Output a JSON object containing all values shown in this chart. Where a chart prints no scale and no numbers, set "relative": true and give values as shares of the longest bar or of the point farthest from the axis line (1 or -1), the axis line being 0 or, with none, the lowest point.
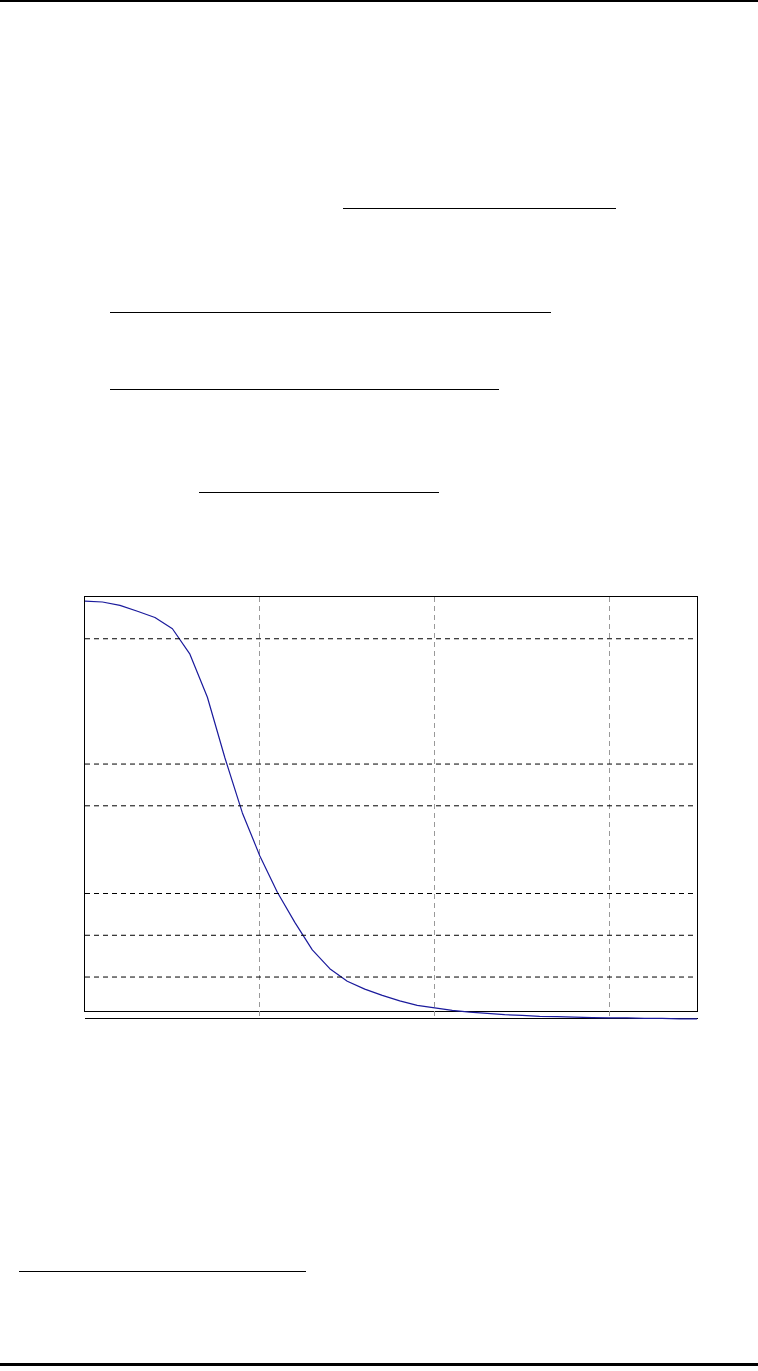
{
  "chart_data": {
    "type": "line",
    "relative": true,
    "categories": [
      null,
      null,
      null,
      null,
      null,
      null,
      null,
      null,
      null,
      null,
      null,
      null,
      null,
      null,
      null,
      null,
      null,
      null,
      null,
      null,
      null,
      null,
      null,
      null,
      null,
      null,
      null,
      null,
      null,
      null,
      null,
      null,
      null,
      null,
      null,
      null
    ],
    "series": [
      {
        "color": "#1a1a9c",
        "values": [
          1,
          0.998,
          0.99,
          0.976,
          0.961,
          0.934,
          0.873,
          0.77,
          0.625,
          0.493,
          0.39,
          0.303,
          0.231,
          0.165,
          0.12,
          0.09,
          0.071,
          0.056,
          0.043,
          0.032,
          0.026,
          0.02,
          0.016,
          0.013,
          0.01,
          0.008,
          0.006,
          0.005,
          0.004,
          0.003,
          0.002,
          0.002,
          0.001,
          0.001,
          0,
          0
        ]
      }
    ],
    "grid": "x",
    "marker": "none",
    "line_style": "solid",
    "ref_lines": [
      {
        "axis": "y",
        "value": 0.91,
        "color": "#000000",
        "line_style": "dashed"
      },
      {
        "axis": "y",
        "value": 0.61,
        "color": "#000000",
        "line_style": "dashed"
      },
      {
        "axis": "y",
        "value": 0.51,
        "color": "#000000",
        "line_style": "dashed"
      },
      {
        "axis": "y",
        "value": 0.3,
        "color": "#000000",
        "line_style": "dashed"
      },
      {
        "axis": "y",
        "value": 0.2,
        "color": "#000000",
        "line_style": "dashed"
      },
      {
        "axis": "y",
        "value": 0.1,
        "color": "#000000",
        "line_style": "dashed"
      }
    ]
  }
}
